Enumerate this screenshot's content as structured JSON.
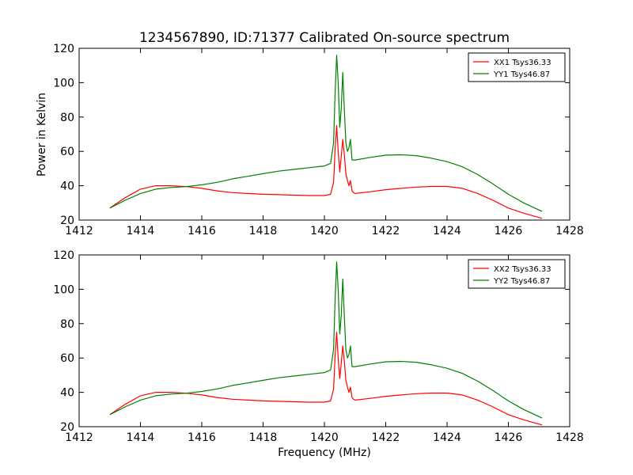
{
  "title": "1234567890, ID:71377 Calibrated On-source spectrum",
  "chart_data": [
    {
      "type": "line",
      "ylabel": "Power in Kelvin",
      "xlabel": "",
      "xlim": [
        1412,
        1428
      ],
      "ylim": [
        20,
        120
      ],
      "xticks": [
        "1412",
        "1414",
        "1416",
        "1418",
        "1420",
        "1422",
        "1424",
        "1426",
        "1428"
      ],
      "yticks": [
        "20",
        "40",
        "60",
        "80",
        "100",
        "120"
      ],
      "legend_position": "top-right",
      "grid": false,
      "series": [
        {
          "name": "XX1 Tsys36.33",
          "color": "#ff0000",
          "x": [
            1413.0,
            1413.5,
            1414.0,
            1414.5,
            1415.0,
            1415.5,
            1416.0,
            1416.5,
            1417.0,
            1417.5,
            1418.0,
            1418.5,
            1419.0,
            1419.5,
            1420.0,
            1420.2,
            1420.3,
            1420.35,
            1420.4,
            1420.45,
            1420.5,
            1420.55,
            1420.6,
            1420.65,
            1420.7,
            1420.75,
            1420.8,
            1420.85,
            1420.9,
            1420.95,
            1421.0,
            1421.5,
            1422.0,
            1422.5,
            1423.0,
            1423.5,
            1424.0,
            1424.5,
            1425.0,
            1425.5,
            1426.0,
            1426.5,
            1427.1
          ],
          "values": [
            27,
            33,
            38,
            40,
            40,
            39.5,
            38.5,
            37,
            36,
            35.5,
            35,
            34.8,
            34.5,
            34.3,
            34.3,
            35,
            42,
            62,
            75,
            60,
            48,
            57,
            67,
            58,
            47,
            43,
            40,
            43,
            37,
            36,
            35.5,
            36.5,
            37.7,
            38.5,
            39.2,
            39.6,
            39.6,
            38.5,
            35.5,
            31.5,
            27,
            24,
            21
          ]
        },
        {
          "name": "YY1 Tsys46.87",
          "color": "#008000",
          "x": [
            1413.0,
            1413.5,
            1414.0,
            1414.5,
            1415.0,
            1415.5,
            1416.0,
            1416.5,
            1417.0,
            1417.5,
            1418.0,
            1418.5,
            1419.0,
            1419.5,
            1420.0,
            1420.2,
            1420.3,
            1420.35,
            1420.4,
            1420.45,
            1420.5,
            1420.55,
            1420.6,
            1420.65,
            1420.7,
            1420.75,
            1420.8,
            1420.85,
            1420.9,
            1420.95,
            1421.0,
            1421.5,
            1422.0,
            1422.5,
            1423.0,
            1423.5,
            1424.0,
            1424.5,
            1425.0,
            1425.5,
            1426.0,
            1426.5,
            1427.1
          ],
          "values": [
            27,
            31.5,
            35.5,
            38,
            39,
            39.5,
            40.5,
            42,
            44,
            45.5,
            47,
            48.5,
            49.5,
            50.5,
            51.5,
            53,
            65,
            95,
            116,
            100,
            74,
            85,
            106,
            84,
            65,
            60,
            62,
            67,
            55,
            55,
            55,
            56.5,
            57.8,
            58,
            57.5,
            56,
            54,
            51,
            46.5,
            41,
            35,
            30,
            25
          ]
        }
      ]
    },
    {
      "type": "line",
      "ylabel": "",
      "xlabel": "Frequency (MHz)",
      "xlim": [
        1412,
        1428
      ],
      "ylim": [
        20,
        120
      ],
      "xticks": [
        "1412",
        "1414",
        "1416",
        "1418",
        "1420",
        "1422",
        "1424",
        "1426",
        "1428"
      ],
      "yticks": [
        "20",
        "40",
        "60",
        "80",
        "100",
        "120"
      ],
      "legend_position": "top-right",
      "grid": false,
      "series": [
        {
          "name": "XX2 Tsys36.33",
          "color": "#ff0000",
          "x": [
            1413.0,
            1413.5,
            1414.0,
            1414.5,
            1415.0,
            1415.5,
            1416.0,
            1416.5,
            1417.0,
            1417.5,
            1418.0,
            1418.5,
            1419.0,
            1419.5,
            1420.0,
            1420.2,
            1420.3,
            1420.35,
            1420.4,
            1420.45,
            1420.5,
            1420.55,
            1420.6,
            1420.65,
            1420.7,
            1420.75,
            1420.8,
            1420.85,
            1420.9,
            1420.95,
            1421.0,
            1421.5,
            1422.0,
            1422.5,
            1423.0,
            1423.5,
            1424.0,
            1424.5,
            1425.0,
            1425.5,
            1426.0,
            1426.5,
            1427.1
          ],
          "values": [
            27,
            33,
            38,
            40,
            40,
            39.5,
            38.5,
            37,
            36,
            35.5,
            35,
            34.8,
            34.5,
            34.3,
            34.3,
            35,
            42,
            62,
            75,
            60,
            48,
            57,
            67,
            58,
            47,
            43,
            40,
            43,
            37,
            36,
            35.5,
            36.5,
            37.7,
            38.5,
            39.2,
            39.6,
            39.6,
            38.5,
            35.5,
            31.5,
            27,
            24,
            21
          ]
        },
        {
          "name": "YY2 Tsys46.87",
          "color": "#008000",
          "x": [
            1413.0,
            1413.5,
            1414.0,
            1414.5,
            1415.0,
            1415.5,
            1416.0,
            1416.5,
            1417.0,
            1417.5,
            1418.0,
            1418.5,
            1419.0,
            1419.5,
            1420.0,
            1420.2,
            1420.3,
            1420.35,
            1420.4,
            1420.45,
            1420.5,
            1420.55,
            1420.6,
            1420.65,
            1420.7,
            1420.75,
            1420.8,
            1420.85,
            1420.9,
            1420.95,
            1421.0,
            1421.5,
            1422.0,
            1422.5,
            1423.0,
            1423.5,
            1424.0,
            1424.5,
            1425.0,
            1425.5,
            1426.0,
            1426.5,
            1427.1
          ],
          "values": [
            27,
            31.5,
            35.5,
            38,
            39,
            39.5,
            40.5,
            42,
            44,
            45.5,
            47,
            48.5,
            49.5,
            50.5,
            51.5,
            53,
            65,
            95,
            116,
            100,
            74,
            85,
            106,
            84,
            65,
            60,
            62,
            67,
            55,
            55,
            55,
            56.5,
            57.8,
            58,
            57.5,
            56,
            54,
            51,
            46.5,
            41,
            35,
            30,
            25
          ]
        }
      ]
    }
  ]
}
